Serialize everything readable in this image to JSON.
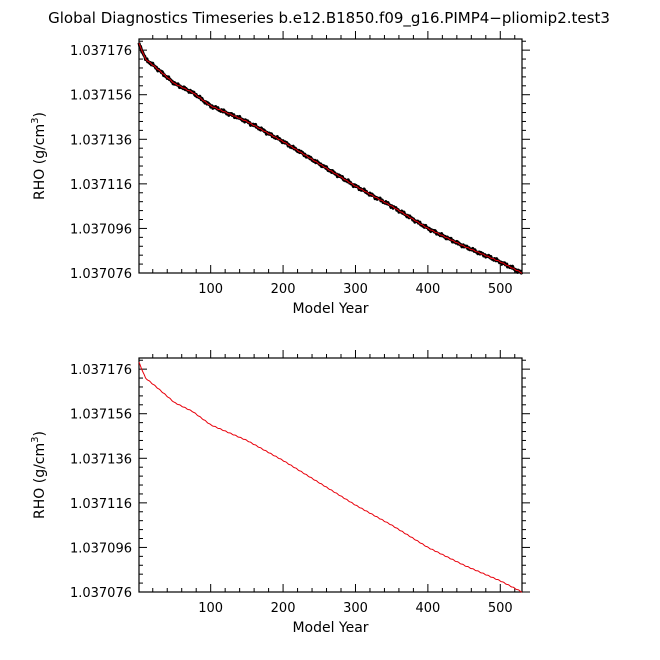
{
  "figure_title": "Global Diagnostics Timeseries b.e12.B1850.f09_g16.PIMP4−pliomip2.test3",
  "chart_data": [
    {
      "type": "line",
      "panel": "top",
      "xlabel": "Model Year",
      "ylabel_main": "RHO (g/cm",
      "ylabel_sup": "3",
      "ylabel_close": ")",
      "xlim": [
        1,
        530
      ],
      "ylim": [
        1.037076,
        1.037181
      ],
      "xticks": [
        100,
        200,
        300,
        400,
        500
      ],
      "xtick_labels": [
        "100",
        "200",
        "300",
        "400",
        "500"
      ],
      "yticks": [
        1.037076,
        1.037096,
        1.037116,
        1.037136,
        1.037156,
        1.037176
      ],
      "ytick_labels": [
        "1.037076",
        "1.037096",
        "1.037116",
        "1.037136",
        "1.037156",
        "1.037176"
      ],
      "grid": false,
      "series": [
        {
          "color": "#000000",
          "style": "noisy annual",
          "x": [
            1,
            10,
            25,
            50,
            75,
            100,
            150,
            200,
            250,
            300,
            350,
            400,
            450,
            500,
            530
          ],
          "y": [
            1.037179,
            1.037172,
            1.037168,
            1.037161,
            1.037157,
            1.037151,
            1.037144,
            1.037135,
            1.037125,
            1.037115,
            1.037106,
            1.037096,
            1.037088,
            1.037081,
            1.037076
          ]
        },
        {
          "color": "#e8000b",
          "style": "smoothed",
          "x": [
            1,
            10,
            25,
            50,
            75,
            100,
            150,
            200,
            250,
            300,
            350,
            400,
            450,
            500,
            530
          ],
          "y": [
            1.037179,
            1.037172,
            1.037168,
            1.037161,
            1.037157,
            1.037151,
            1.037144,
            1.037135,
            1.037125,
            1.037115,
            1.037106,
            1.037096,
            1.037088,
            1.037081,
            1.037076
          ]
        }
      ]
    },
    {
      "type": "line",
      "panel": "bottom",
      "xlabel": "Model Year",
      "ylabel_main": "RHO (g/cm",
      "ylabel_sup": "3",
      "ylabel_close": ")",
      "xlim": [
        1,
        530
      ],
      "ylim": [
        1.037076,
        1.037181
      ],
      "xticks": [
        100,
        200,
        300,
        400,
        500
      ],
      "xtick_labels": [
        "100",
        "200",
        "300",
        "400",
        "500"
      ],
      "yticks": [
        1.037076,
        1.037096,
        1.037116,
        1.037136,
        1.037156,
        1.037176
      ],
      "ytick_labels": [
        "1.037076",
        "1.037096",
        "1.037116",
        "1.037136",
        "1.037156",
        "1.037176"
      ],
      "grid": false,
      "series": [
        {
          "color": "#e8000b",
          "style": "smoothed",
          "x": [
            1,
            10,
            25,
            50,
            75,
            100,
            150,
            200,
            250,
            300,
            350,
            400,
            450,
            500,
            530
          ],
          "y": [
            1.037179,
            1.037172,
            1.037168,
            1.037161,
            1.037157,
            1.037151,
            1.037144,
            1.037135,
            1.037125,
            1.037115,
            1.037106,
            1.037096,
            1.037088,
            1.037081,
            1.037076
          ]
        }
      ]
    }
  ]
}
